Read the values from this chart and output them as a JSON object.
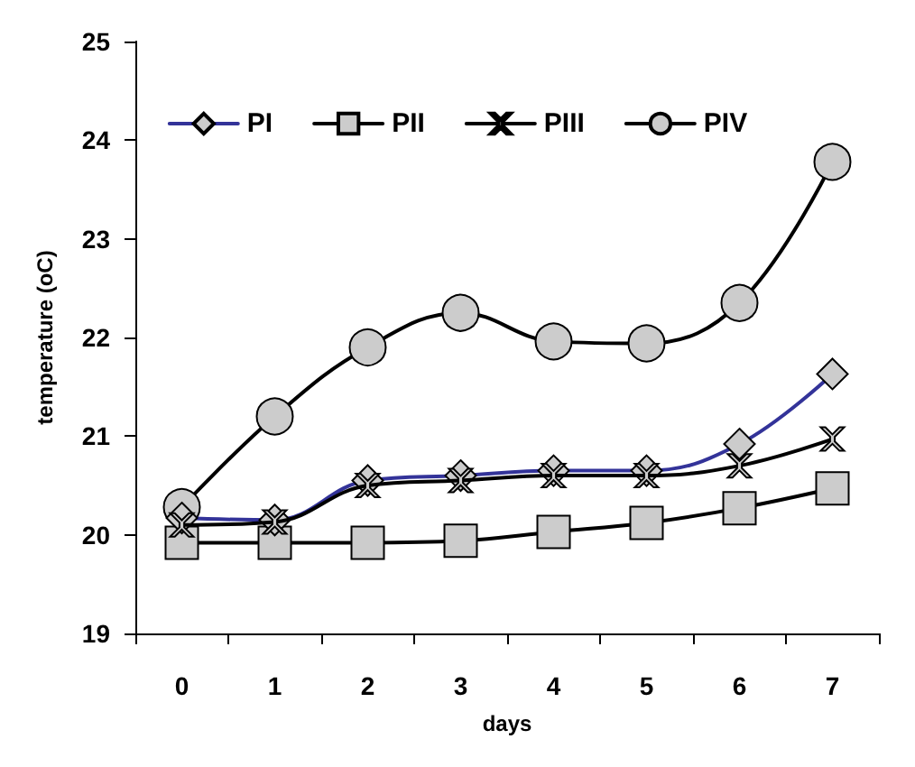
{
  "chart_data": {
    "type": "line",
    "xlabel": "days",
    "ylabel": "temperature (oC)",
    "categories": [
      "0",
      "1",
      "2",
      "3",
      "4",
      "5",
      "6",
      "7"
    ],
    "ylim": [
      19,
      25
    ],
    "yticks": [
      19,
      20,
      21,
      22,
      23,
      24,
      25
    ],
    "grid": false,
    "legend": "top",
    "line_style": "solid",
    "series": [
      {
        "name": "PI",
        "color": "#333399",
        "marker": "diamond",
        "values": [
          20.17,
          20.15,
          20.55,
          20.6,
          20.65,
          20.65,
          20.92,
          21.63
        ]
      },
      {
        "name": "PII",
        "color": "#000000",
        "marker": "square",
        "values": [
          19.92,
          19.92,
          19.92,
          19.94,
          20.03,
          20.12,
          20.27,
          20.47
        ]
      },
      {
        "name": "PIII",
        "color": "#000000",
        "marker": "cross",
        "values": [
          20.1,
          20.13,
          20.5,
          20.55,
          20.6,
          20.6,
          20.7,
          20.97
        ]
      },
      {
        "name": "PIV",
        "color": "#000000",
        "marker": "circle",
        "values": [
          20.28,
          21.2,
          21.9,
          22.25,
          21.96,
          21.94,
          22.35,
          23.78
        ]
      }
    ]
  }
}
